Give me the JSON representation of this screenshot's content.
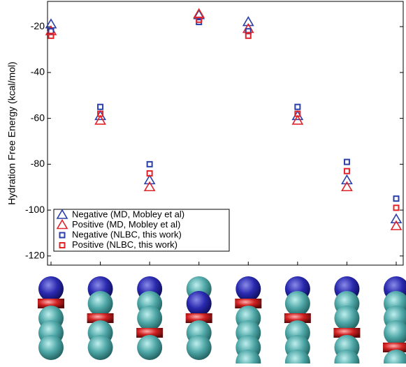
{
  "chart_data": {
    "type": "scatter",
    "ylabel": "Hydration Free Energy (kcal/mol)",
    "categories": [
      null,
      null,
      null,
      null,
      null,
      null,
      null,
      null
    ],
    "ylim": [
      -124,
      -9
    ],
    "yticks": [
      -20,
      -40,
      -60,
      -80,
      -100,
      -120
    ],
    "legend": "lower left",
    "series": [
      {
        "name": "Negative (MD, Mobley et al)",
        "color": "#2b3fa8",
        "marker": "triangle",
        "values": [
          -19,
          -59,
          -87,
          -15,
          -18,
          -59,
          -87,
          -104
        ]
      },
      {
        "name": "Positive (MD, Mobley et al)",
        "color": "#e0242a",
        "marker": "triangle",
        "values": [
          -22,
          -61,
          -90,
          -14.5,
          -21,
          -61,
          -90,
          -107
        ]
      },
      {
        "name": "Negative (NLBC, this work)",
        "color": "#2b3fa8",
        "marker": "square",
        "values": [
          -22,
          -55,
          -80,
          -18,
          -22,
          -55,
          -79,
          -95
        ]
      },
      {
        "name": "Positive (NLBC, this work)",
        "color": "#e0242a",
        "marker": "square",
        "values": [
          -24,
          -58,
          -84,
          -17,
          -24,
          -58,
          -83,
          -99
        ]
      }
    ]
  }
}
